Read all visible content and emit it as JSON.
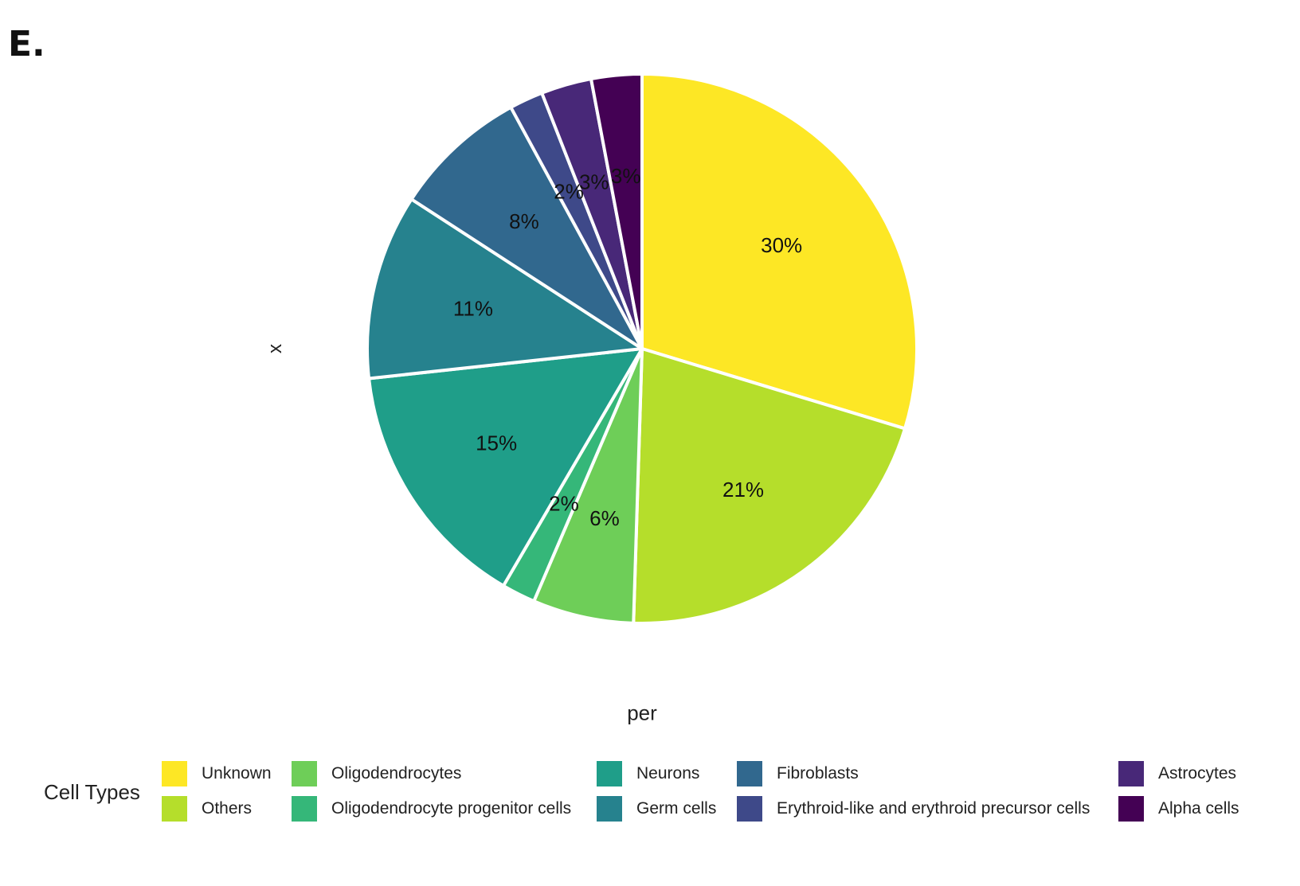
{
  "panel_label": "E.",
  "chart_data": {
    "type": "pie",
    "xlabel": "per",
    "ylabel": "x",
    "legend_title": "Cell Types",
    "legend_position": "bottom",
    "slices": [
      {
        "name": "Unknown",
        "value": 30,
        "label": "30%",
        "color": "#FDE725"
      },
      {
        "name": "Others",
        "value": 21,
        "label": "21%",
        "color": "#B5DE2B"
      },
      {
        "name": "Oligodendrocytes",
        "value": 6,
        "label": "6%",
        "color": "#6ECE58"
      },
      {
        "name": "Oligodendrocyte progenitor cells",
        "value": 2,
        "label": "2%",
        "color": "#35B779"
      },
      {
        "name": "Neurons",
        "value": 15,
        "label": "15%",
        "color": "#1F9E89"
      },
      {
        "name": "Germ cells",
        "value": 11,
        "label": "11%",
        "color": "#26828E"
      },
      {
        "name": "Fibroblasts",
        "value": 8,
        "label": "8%",
        "color": "#31688E"
      },
      {
        "name": "Erythroid-like and erythroid precursor cells",
        "value": 2,
        "label": "2%",
        "color": "#3E4989"
      },
      {
        "name": "Astrocytes",
        "value": 3,
        "label": "3%",
        "color": "#482878"
      },
      {
        "name": "Alpha cells",
        "value": 3,
        "label": "3%",
        "color": "#440154"
      }
    ]
  }
}
